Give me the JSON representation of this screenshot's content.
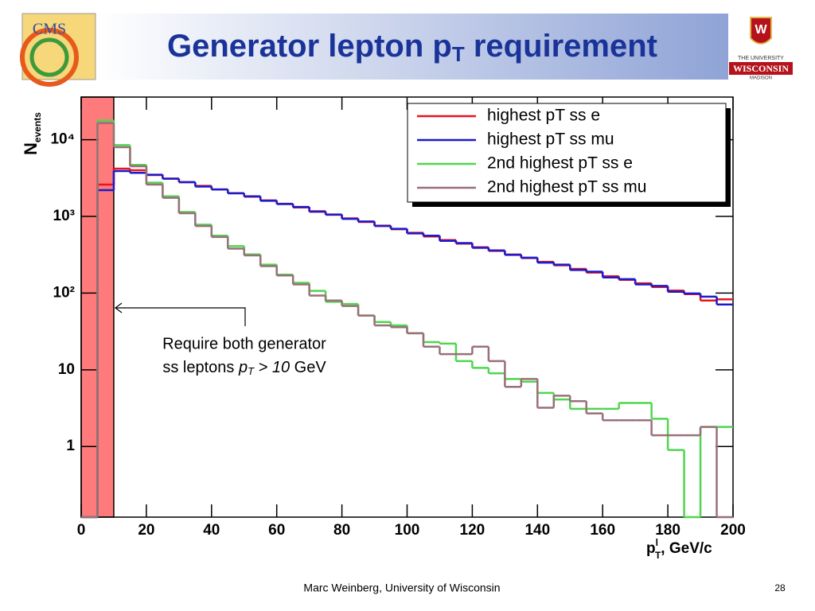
{
  "header": {
    "logo_left": "CMS",
    "logo_right": [
      "THE UNIVERSITY",
      "WISCONSIN",
      "MADISON"
    ]
  },
  "chart_data": {
    "type": "histogram",
    "title": [
      "Generator lepton p",
      "T",
      " requirement"
    ],
    "xlabel": [
      "p",
      "l",
      "T",
      ", GeV/c"
    ],
    "ylabel": [
      "N",
      "events"
    ],
    "log_y": true,
    "bins": [
      0,
      5,
      10,
      15,
      20,
      25,
      30,
      35,
      40,
      45,
      50,
      55,
      60,
      65,
      70,
      75,
      80,
      85,
      90,
      95,
      100,
      105,
      110,
      115,
      120,
      125,
      130,
      135,
      140,
      145,
      150,
      155,
      160,
      165,
      170,
      175,
      180,
      185,
      190,
      195,
      200
    ],
    "series": [
      {
        "name": "highest pT ss e",
        "color": "#e8141e",
        "values": [
          0,
          2600,
          4200,
          4000,
          3470,
          3110,
          2790,
          2500,
          2250,
          2010,
          1810,
          1620,
          1460,
          1310,
          1170,
          1050,
          944,
          846,
          759,
          681,
          611,
          548,
          492,
          442,
          396,
          355,
          319,
          286,
          256,
          230,
          207,
          185,
          166,
          149,
          134,
          120,
          108,
          97,
          80,
          83
        ]
      },
      {
        "name": "highest pT ss mu",
        "color": "#1a1acc",
        "values": [
          0,
          2200,
          3900,
          3700,
          3500,
          3100,
          2800,
          2450,
          2250,
          2000,
          1830,
          1600,
          1450,
          1330,
          1150,
          1060,
          930,
          860,
          750,
          690,
          600,
          560,
          480,
          450,
          390,
          360,
          315,
          290,
          250,
          235,
          200,
          190,
          160,
          152,
          130,
          124,
          104,
          99,
          90,
          71
        ]
      },
      {
        "name": "2nd highest pT ss e",
        "color": "#4fd64f",
        "values": [
          0,
          17800,
          8500,
          4700,
          2750,
          1830,
          1140,
          780,
          560,
          410,
          320,
          235,
          174,
          136,
          107,
          77,
          72,
          51,
          42,
          38,
          30,
          23,
          22,
          13,
          10.6,
          9,
          7.6,
          7,
          5,
          4.1,
          3.1,
          3.1,
          3.1,
          3.7,
          3.7,
          2.3,
          0.9,
          0,
          1.8,
          1.8
        ]
      },
      {
        "name": "2nd highest pT ss mu",
        "color": "#9a6f79",
        "values": [
          0,
          16500,
          8000,
          4500,
          2600,
          1750,
          1100,
          750,
          540,
          380,
          310,
          225,
          170,
          130,
          93,
          80,
          68,
          51,
          38,
          36,
          30,
          20,
          16,
          16,
          20,
          13,
          6,
          7.6,
          3.2,
          4.6,
          3.9,
          2.7,
          2.2,
          2.2,
          2.2,
          1.4,
          1.4,
          1.4,
          1.8,
          0
        ]
      }
    ],
    "cut_region": [
      0,
      10
    ],
    "annotation": {
      "line1": "Require both generator",
      "line2": [
        "ss leptons ",
        "p",
        "T",
        " > 10",
        " GeV"
      ]
    },
    "xlim": [
      0,
      200
    ],
    "xticks": [
      0,
      20,
      40,
      60,
      80,
      100,
      120,
      140,
      160,
      180,
      200
    ],
    "ylim": [
      0.12,
      36000
    ],
    "yticks": [
      1,
      10,
      {
        "value": 100,
        "label": "10²"
      },
      {
        "value": 1000,
        "label": "10³"
      },
      {
        "value": 10000,
        "label": "10⁴"
      }
    ],
    "legend": "upper right"
  },
  "footer": {
    "author": "Marc Weinberg, University of Wisconsin",
    "page": "28"
  }
}
